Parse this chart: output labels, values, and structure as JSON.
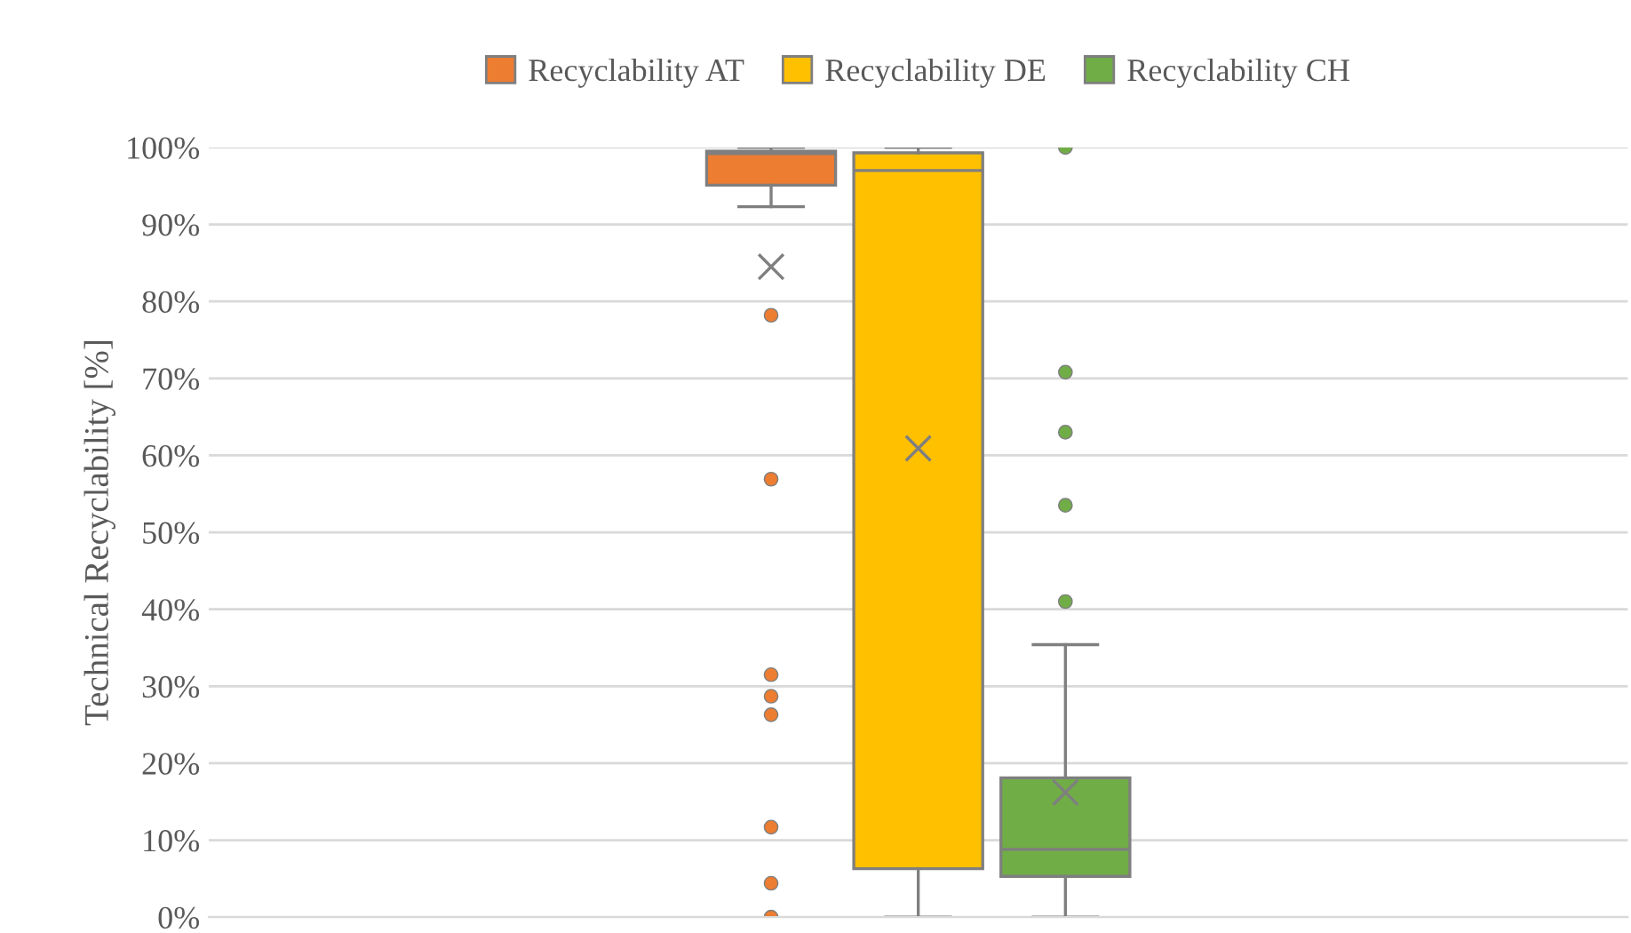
{
  "chart_data": {
    "type": "box",
    "ylabel": "Technical Recyclability [%]",
    "categories": [
      null
    ],
    "series": [
      {
        "name": "Recyclability AT",
        "color": "#ed7d31",
        "boxes": [
          {
            "low": 92.3,
            "q1": 95.1,
            "median": 99.2,
            "q3": 99.5,
            "high": 100,
            "mean": 84.5,
            "outliers": [
              78.2,
              56.9,
              31.5,
              28.7,
              26.3,
              11.7,
              4.4,
              0
            ]
          }
        ]
      },
      {
        "name": "Recyclability DE",
        "color": "#ffc000",
        "boxes": [
          {
            "low": 0,
            "q1": 6.3,
            "median": 97.0,
            "q3": 99.3,
            "high": 100,
            "mean": 60.9
          }
        ]
      },
      {
        "name": "Recyclability CH",
        "color": "#70ad47",
        "boxes": [
          {
            "low": 0,
            "q1": 5.3,
            "median": 8.8,
            "q3": 18.1,
            "high": 35.4,
            "mean": 16.2,
            "outliers": [
              100,
              70.8,
              63.0,
              53.5,
              41.0
            ]
          }
        ]
      }
    ],
    "ylim": [
      0,
      100
    ],
    "yticks": [
      {
        "value": 0,
        "label": "0%"
      },
      {
        "value": 10,
        "label": "10%"
      },
      {
        "value": 20,
        "label": "20%"
      },
      {
        "value": 30,
        "label": "30%"
      },
      {
        "value": 40,
        "label": "40%"
      },
      {
        "value": 50,
        "label": "50%"
      },
      {
        "value": 60,
        "label": "60%"
      },
      {
        "value": 70,
        "label": "70%"
      },
      {
        "value": 80,
        "label": "80%"
      },
      {
        "value": 90,
        "label": "90%"
      },
      {
        "value": 100,
        "label": "100%"
      }
    ],
    "grid": "y",
    "legend": "top"
  }
}
